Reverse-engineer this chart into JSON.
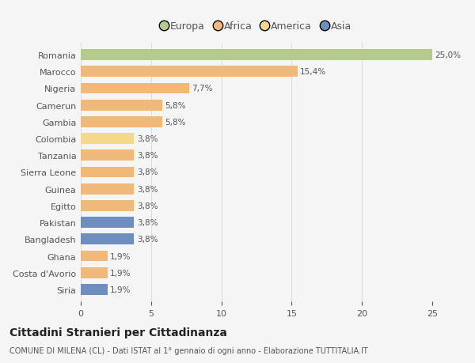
{
  "categories": [
    "Romania",
    "Marocco",
    "Nigeria",
    "Camerun",
    "Gambia",
    "Colombia",
    "Tanzania",
    "Sierra Leone",
    "Guinea",
    "Egitto",
    "Pakistan",
    "Bangladesh",
    "Ghana",
    "Costa d'Avorio",
    "Siria"
  ],
  "values": [
    25.0,
    15.4,
    7.7,
    5.8,
    5.8,
    3.8,
    3.8,
    3.8,
    3.8,
    3.8,
    3.8,
    3.8,
    1.9,
    1.9,
    1.9
  ],
  "labels": [
    "25,0%",
    "15,4%",
    "7,7%",
    "5,8%",
    "5,8%",
    "3,8%",
    "3,8%",
    "3,8%",
    "3,8%",
    "3,8%",
    "3,8%",
    "3,8%",
    "1,9%",
    "1,9%",
    "1,9%"
  ],
  "colors": [
    "#b5cb8e",
    "#f0b97a",
    "#f0b97a",
    "#f0b97a",
    "#f0b97a",
    "#f5d98a",
    "#f0b97a",
    "#f0b97a",
    "#f0b97a",
    "#f0b97a",
    "#6d8ebe",
    "#6d8ebe",
    "#f0b97a",
    "#f0b97a",
    "#6d8ebe"
  ],
  "legend": [
    {
      "label": "Europa",
      "color": "#b5cb8e"
    },
    {
      "label": "Africa",
      "color": "#f0b97a"
    },
    {
      "label": "America",
      "color": "#f5d98a"
    },
    {
      "label": "Asia",
      "color": "#6d8ebe"
    }
  ],
  "xlim": [
    0,
    25
  ],
  "xticks": [
    0,
    5,
    10,
    15,
    20,
    25
  ],
  "title": "Cittadini Stranieri per Cittadinanza",
  "subtitle": "COMUNE DI MILENA (CL) - Dati ISTAT al 1° gennaio di ogni anno - Elaborazione TUTTITALIA.IT",
  "background_color": "#f5f5f5",
  "grid_color": "#dddddd",
  "bar_height": 0.65
}
